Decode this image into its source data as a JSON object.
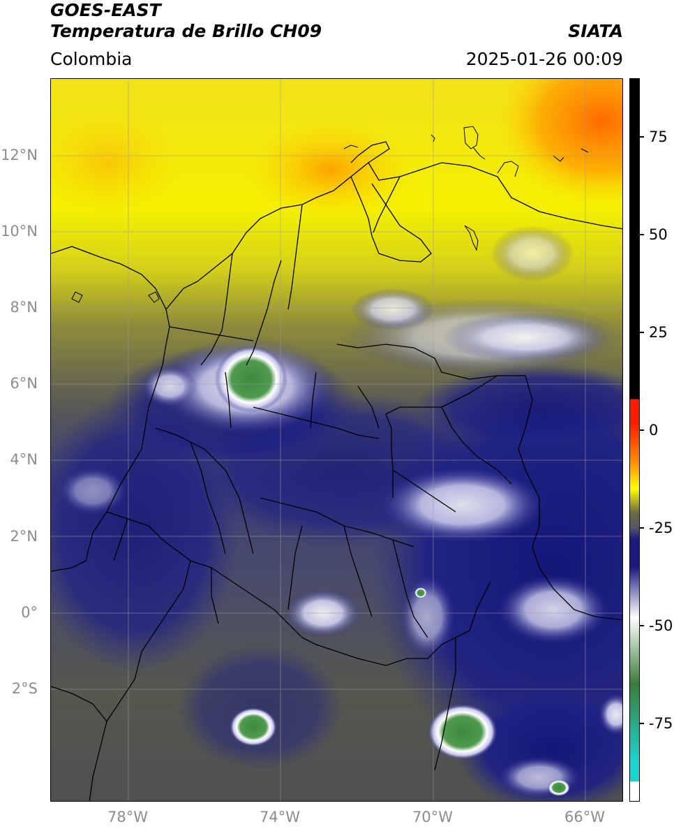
{
  "header": {
    "satellite": "GOES-EAST",
    "product": "Temperatura de Brillo CH09",
    "organization": "SIATA",
    "region": "Colombia",
    "timestamp": "2025-01-26 00:09"
  },
  "map": {
    "lat_labels": [
      "12°N",
      "10°N",
      "8°N",
      "6°N",
      "4°N",
      "2°N",
      "0°",
      "2°S"
    ],
    "lon_labels": [
      "78°W",
      "74°W",
      "70°W",
      "66°W"
    ],
    "lat_range": [
      -5,
      14
    ],
    "lon_range": [
      -80,
      -65
    ]
  },
  "colorbar": {
    "tick_labels": [
      "75",
      "50",
      "25",
      "0",
      "-25",
      "-50",
      "-75"
    ],
    "ticks": [
      75,
      50,
      25,
      0,
      -25,
      -50,
      -75
    ],
    "range": [
      -95,
      90
    ],
    "colors": {
      "warm_black": "#000000",
      "red": "#ff1a00",
      "orange": "#ff8c00",
      "yellow": "#ffff00",
      "olive": "#6e6e3c",
      "gray": "#55556a",
      "navy": "#1a1a80",
      "white": "#ffffff",
      "green": "#3a7d3a",
      "cyan": "#19d6d2"
    }
  }
}
